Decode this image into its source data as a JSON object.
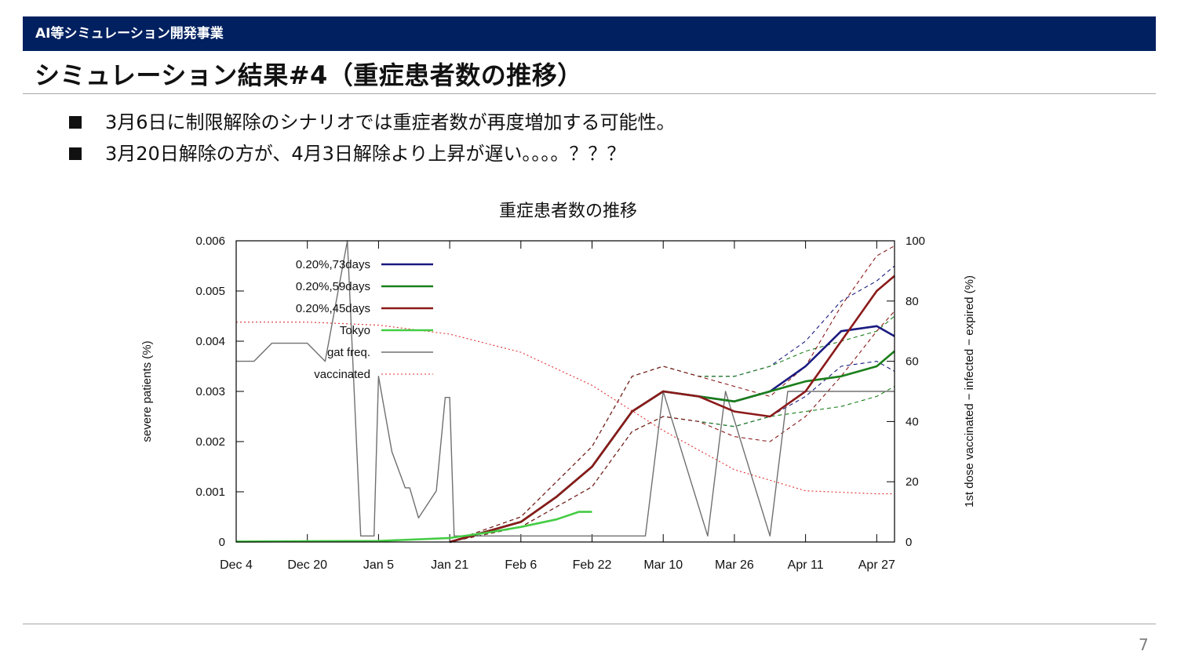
{
  "header": {
    "banner_text": "AI等シミュレーション開発事業"
  },
  "slide": {
    "title": "シミュレーション結果#4（重症患者数の推移）",
    "bullets": [
      "3月6日に制限解除のシナリオでは重症者数が再度増加する可能性。",
      "3月20日解除の方が、4月3日解除より上昇が遅い。。。。？？？"
    ],
    "page_number": "7"
  },
  "colors": {
    "banner": "#002060",
    "series_73": "#1a1a80",
    "series_59": "#1a7f1a",
    "series_45": "#8b1a1a",
    "tokyo": "#44cc44",
    "gat": "#707070",
    "vaccinated": "#e03030"
  },
  "chart_data": {
    "type": "line",
    "title": "重症患者数の推移",
    "ylabel": "severe patients (%)",
    "y2label": "1st dose vaccinated − infected − expired (%)",
    "ylim": [
      0,
      0.006
    ],
    "y2lim": [
      0,
      100
    ],
    "xlim": [
      "2020-12-04",
      "2021-05-01"
    ],
    "x_ticks": [
      "Dec 4",
      "Dec 20",
      "Jan 5",
      "Jan 21",
      "Feb 6",
      "Feb 22",
      "Mar 10",
      "Mar 26",
      "Apr 11",
      "Apr 27"
    ],
    "x_tick_dates": [
      "2020-12-04",
      "2020-12-20",
      "2021-01-05",
      "2021-01-21",
      "2021-02-06",
      "2021-02-22",
      "2021-03-10",
      "2021-03-26",
      "2021-04-11",
      "2021-04-27"
    ],
    "y_ticks": [
      "0",
      "0.001",
      "0.002",
      "0.003",
      "0.004",
      "0.005",
      "0.006"
    ],
    "y2_ticks": [
      "0",
      "20",
      "40",
      "60",
      "80",
      "100"
    ],
    "legend_position": "top-left",
    "series": [
      {
        "name": "0.20%,73days",
        "axis": "left",
        "style": "solid-thick",
        "color": "#1a1a80",
        "x": [
          "2021-01-21",
          "2021-02-06",
          "2021-02-14",
          "2021-02-22",
          "2021-03-03",
          "2021-03-10",
          "2021-03-18",
          "2021-03-26",
          "2021-04-03",
          "2021-04-11",
          "2021-04-19",
          "2021-04-27",
          "2021-05-01"
        ],
        "y": [
          0.0,
          0.0004,
          0.0009,
          0.0015,
          0.0026,
          0.003,
          0.0029,
          0.0028,
          0.003,
          0.0035,
          0.0042,
          0.0043,
          0.0041
        ]
      },
      {
        "name": "0.20%,59days",
        "axis": "left",
        "style": "solid-thick",
        "color": "#1a7f1a",
        "x": [
          "2021-01-21",
          "2021-02-06",
          "2021-02-14",
          "2021-02-22",
          "2021-03-03",
          "2021-03-10",
          "2021-03-18",
          "2021-03-26",
          "2021-04-03",
          "2021-04-11",
          "2021-04-19",
          "2021-04-27",
          "2021-05-01"
        ],
        "y": [
          0.0,
          0.0004,
          0.0009,
          0.0015,
          0.0026,
          0.003,
          0.0029,
          0.0028,
          0.003,
          0.0032,
          0.0033,
          0.0035,
          0.0038
        ]
      },
      {
        "name": "0.20%,45days",
        "axis": "left",
        "style": "solid-thick",
        "color": "#8b1a1a",
        "x": [
          "2021-01-21",
          "2021-02-06",
          "2021-02-14",
          "2021-02-22",
          "2021-03-03",
          "2021-03-10",
          "2021-03-18",
          "2021-03-26",
          "2021-04-03",
          "2021-04-11",
          "2021-04-19",
          "2021-04-27",
          "2021-05-01"
        ],
        "y": [
          0.0,
          0.0004,
          0.0009,
          0.0015,
          0.0026,
          0.003,
          0.0029,
          0.0026,
          0.0025,
          0.003,
          0.004,
          0.005,
          0.0053
        ]
      },
      {
        "name": "Tokyo",
        "axis": "left",
        "style": "solid-thick",
        "color": "#44cc44",
        "x": [
          "2020-12-04",
          "2021-01-05",
          "2021-01-21",
          "2021-01-29",
          "2021-02-06",
          "2021-02-14",
          "2021-02-19",
          "2021-02-22"
        ],
        "y": [
          1e-05,
          2e-05,
          8e-05,
          0.00018,
          0.0003,
          0.00045,
          0.0006,
          0.0006
        ]
      },
      {
        "name": "gat freq.",
        "axis": "right",
        "style": "solid-thin",
        "color": "#707070",
        "x": [
          "2020-12-04",
          "2020-12-08",
          "2020-12-12",
          "2020-12-20",
          "2020-12-24",
          "2020-12-29",
          "2021-01-01",
          "2021-01-04",
          "2021-01-05",
          "2021-01-08",
          "2021-01-11",
          "2021-01-12",
          "2021-01-14",
          "2021-01-18",
          "2021-01-20",
          "2021-01-21",
          "2021-01-22",
          "2021-03-06",
          "2021-03-10",
          "2021-03-20",
          "2021-03-24",
          "2021-04-03",
          "2021-04-07",
          "2021-05-01"
        ],
        "y": [
          60,
          60,
          66,
          66,
          60,
          100,
          2,
          2,
          55,
          30,
          18,
          18,
          8,
          17,
          48,
          48,
          2,
          2,
          50,
          2,
          50,
          2,
          50,
          50
        ]
      },
      {
        "name": "vaccinated",
        "axis": "right",
        "style": "dotted",
        "color": "#e03030",
        "x": [
          "2020-12-04",
          "2020-12-20",
          "2021-01-05",
          "2021-01-21",
          "2021-02-06",
          "2021-02-22",
          "2021-03-10",
          "2021-03-26",
          "2021-04-11",
          "2021-04-27",
          "2021-05-01"
        ],
        "y": [
          73,
          73,
          72,
          69,
          63,
          52,
          37,
          24,
          17,
          16,
          16
        ]
      },
      {
        "name": "",
        "axis": "left",
        "style": "dashed",
        "color": "#1a1a80",
        "x": [
          "2021-01-21",
          "2021-02-06",
          "2021-02-14",
          "2021-02-22",
          "2021-03-03",
          "2021-03-10",
          "2021-03-18",
          "2021-03-26",
          "2021-04-03",
          "2021-04-11",
          "2021-04-19",
          "2021-04-27",
          "2021-05-01"
        ],
        "y": [
          0.0,
          0.0005,
          0.0012,
          0.0019,
          0.0033,
          0.0035,
          0.0033,
          0.0033,
          0.0035,
          0.004,
          0.0048,
          0.0052,
          0.0055
        ]
      },
      {
        "name": "",
        "axis": "left",
        "style": "dashed",
        "color": "#1a1a80",
        "x": [
          "2021-01-21",
          "2021-02-06",
          "2021-02-14",
          "2021-02-22",
          "2021-03-03",
          "2021-03-10",
          "2021-03-18",
          "2021-03-26",
          "2021-04-03",
          "2021-04-11",
          "2021-04-19",
          "2021-04-27",
          "2021-05-01"
        ],
        "y": [
          0.0,
          0.0003,
          0.0007,
          0.0011,
          0.0022,
          0.0025,
          0.0024,
          0.0023,
          0.0025,
          0.0029,
          0.0035,
          0.0036,
          0.0034
        ]
      },
      {
        "name": "",
        "axis": "left",
        "style": "dashed",
        "color": "#1a7f1a",
        "x": [
          "2021-01-21",
          "2021-02-06",
          "2021-02-14",
          "2021-02-22",
          "2021-03-03",
          "2021-03-10",
          "2021-03-18",
          "2021-03-26",
          "2021-04-03",
          "2021-04-11",
          "2021-04-19",
          "2021-04-27",
          "2021-05-01"
        ],
        "y": [
          0.0,
          0.0005,
          0.0012,
          0.0019,
          0.0033,
          0.0035,
          0.0033,
          0.0033,
          0.0035,
          0.0038,
          0.004,
          0.0042,
          0.0045
        ]
      },
      {
        "name": "",
        "axis": "left",
        "style": "dashed",
        "color": "#1a7f1a",
        "x": [
          "2021-01-21",
          "2021-02-06",
          "2021-02-14",
          "2021-02-22",
          "2021-03-03",
          "2021-03-10",
          "2021-03-18",
          "2021-03-26",
          "2021-04-03",
          "2021-04-11",
          "2021-04-19",
          "2021-04-27",
          "2021-05-01"
        ],
        "y": [
          0.0,
          0.0003,
          0.0007,
          0.0011,
          0.0022,
          0.0025,
          0.0024,
          0.0023,
          0.0025,
          0.0026,
          0.0027,
          0.0029,
          0.0031
        ]
      },
      {
        "name": "",
        "axis": "left",
        "style": "dashed",
        "color": "#8b1a1a",
        "x": [
          "2021-01-21",
          "2021-02-06",
          "2021-02-14",
          "2021-02-22",
          "2021-03-03",
          "2021-03-10",
          "2021-03-18",
          "2021-03-26",
          "2021-04-03",
          "2021-04-11",
          "2021-04-19",
          "2021-04-27",
          "2021-05-01"
        ],
        "y": [
          0.0,
          0.0005,
          0.0012,
          0.0019,
          0.0033,
          0.0035,
          0.0033,
          0.0031,
          0.0029,
          0.0035,
          0.0047,
          0.0057,
          0.0059
        ]
      },
      {
        "name": "",
        "axis": "left",
        "style": "dashed",
        "color": "#8b1a1a",
        "x": [
          "2021-01-21",
          "2021-02-06",
          "2021-02-14",
          "2021-02-22",
          "2021-03-03",
          "2021-03-10",
          "2021-03-18",
          "2021-03-26",
          "2021-04-03",
          "2021-04-11",
          "2021-04-19",
          "2021-04-27",
          "2021-05-01"
        ],
        "y": [
          0.0,
          0.0003,
          0.0007,
          0.0011,
          0.0022,
          0.0025,
          0.0024,
          0.0021,
          0.002,
          0.0025,
          0.0033,
          0.0042,
          0.0046
        ]
      }
    ]
  }
}
